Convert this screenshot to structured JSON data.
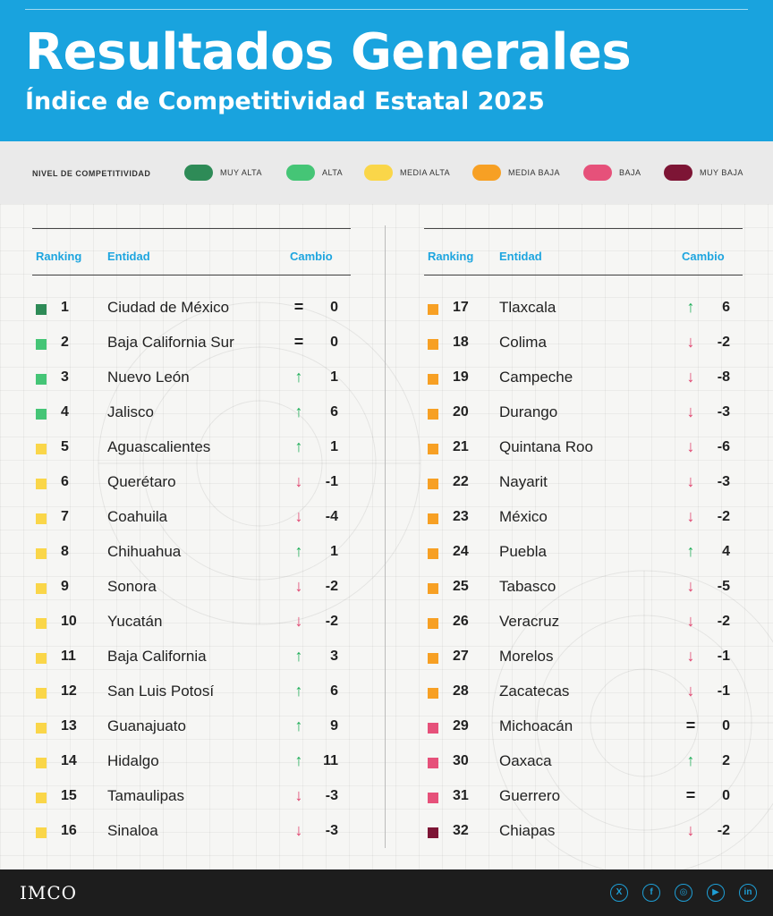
{
  "header": {
    "title": "Resultados Generales",
    "subtitle": "Índice de Competitividad Estatal 2025"
  },
  "legend": {
    "title": "NIVEL DE COMPETITIVIDAD",
    "items": [
      {
        "label": "MUY ALTA",
        "color": "#2e8b57"
      },
      {
        "label": "ALTA",
        "color": "#45c576"
      },
      {
        "label": "MEDIA ALTA",
        "color": "#fad649"
      },
      {
        "label": "MEDIA BAJA",
        "color": "#f7a024"
      },
      {
        "label": "BAJA",
        "color": "#e6517a"
      },
      {
        "label": "MUY BAJA",
        "color": "#7d1535"
      }
    ]
  },
  "columns": {
    "ranking": "Ranking",
    "entidad": "Entidad",
    "cambio": "Cambio"
  },
  "symbols": {
    "up": "↑",
    "down": "↓",
    "same": "="
  },
  "symbol_colors": {
    "up": "#1fae59",
    "down": "#e0406c",
    "same": "#222222"
  },
  "rows": [
    {
      "rank": "1",
      "entity": "Ciudad de México",
      "dir": "same",
      "change": "0",
      "level": 0
    },
    {
      "rank": "2",
      "entity": "Baja California Sur",
      "dir": "same",
      "change": "0",
      "level": 1
    },
    {
      "rank": "3",
      "entity": "Nuevo León",
      "dir": "up",
      "change": "1",
      "level": 1
    },
    {
      "rank": "4",
      "entity": "Jalisco",
      "dir": "up",
      "change": "6",
      "level": 1
    },
    {
      "rank": "5",
      "entity": "Aguascalientes",
      "dir": "up",
      "change": "1",
      "level": 2
    },
    {
      "rank": "6",
      "entity": "Querétaro",
      "dir": "down",
      "change": "-1",
      "level": 2
    },
    {
      "rank": "7",
      "entity": "Coahuila",
      "dir": "down",
      "change": "-4",
      "level": 2
    },
    {
      "rank": "8",
      "entity": "Chihuahua",
      "dir": "up",
      "change": "1",
      "level": 2
    },
    {
      "rank": "9",
      "entity": "Sonora",
      "dir": "down",
      "change": "-2",
      "level": 2
    },
    {
      "rank": "10",
      "entity": "Yucatán",
      "dir": "down",
      "change": "-2",
      "level": 2
    },
    {
      "rank": "11",
      "entity": "Baja California",
      "dir": "up",
      "change": "3",
      "level": 2
    },
    {
      "rank": "12",
      "entity": "San Luis Potosí",
      "dir": "up",
      "change": "6",
      "level": 2
    },
    {
      "rank": "13",
      "entity": "Guanajuato",
      "dir": "up",
      "change": "9",
      "level": 2
    },
    {
      "rank": "14",
      "entity": "Hidalgo",
      "dir": "up",
      "change": "11",
      "level": 2
    },
    {
      "rank": "15",
      "entity": "Tamaulipas",
      "dir": "down",
      "change": "-3",
      "level": 2
    },
    {
      "rank": "16",
      "entity": "Sinaloa",
      "dir": "down",
      "change": "-3",
      "level": 2
    },
    {
      "rank": "17",
      "entity": "Tlaxcala",
      "dir": "up",
      "change": "6",
      "level": 3
    },
    {
      "rank": "18",
      "entity": "Colima",
      "dir": "down",
      "change": "-2",
      "level": 3
    },
    {
      "rank": "19",
      "entity": "Campeche",
      "dir": "down",
      "change": "-8",
      "level": 3
    },
    {
      "rank": "20",
      "entity": "Durango",
      "dir": "down",
      "change": "-3",
      "level": 3
    },
    {
      "rank": "21",
      "entity": "Quintana Roo",
      "dir": "down",
      "change": "-6",
      "level": 3
    },
    {
      "rank": "22",
      "entity": "Nayarit",
      "dir": "down",
      "change": "-3",
      "level": 3
    },
    {
      "rank": "23",
      "entity": "México",
      "dir": "down",
      "change": "-2",
      "level": 3
    },
    {
      "rank": "24",
      "entity": "Puebla",
      "dir": "up",
      "change": "4",
      "level": 3
    },
    {
      "rank": "25",
      "entity": "Tabasco",
      "dir": "down",
      "change": "-5",
      "level": 3
    },
    {
      "rank": "26",
      "entity": "Veracruz",
      "dir": "down",
      "change": "-2",
      "level": 3
    },
    {
      "rank": "27",
      "entity": "Morelos",
      "dir": "down",
      "change": "-1",
      "level": 3
    },
    {
      "rank": "28",
      "entity": "Zacatecas",
      "dir": "down",
      "change": "-1",
      "level": 3
    },
    {
      "rank": "29",
      "entity": "Michoacán",
      "dir": "same",
      "change": "0",
      "level": 4
    },
    {
      "rank": "30",
      "entity": "Oaxaca",
      "dir": "up",
      "change": "2",
      "level": 4
    },
    {
      "rank": "31",
      "entity": "Guerrero",
      "dir": "same",
      "change": "0",
      "level": 4
    },
    {
      "rank": "32",
      "entity": "Chiapas",
      "dir": "down",
      "change": "-2",
      "level": 5
    }
  ],
  "footer": {
    "logo": "IMCO",
    "social": [
      {
        "icon": "x-icon",
        "glyph": "X"
      },
      {
        "icon": "facebook-icon",
        "glyph": "f"
      },
      {
        "icon": "instagram-icon",
        "glyph": "◎"
      },
      {
        "icon": "youtube-icon",
        "glyph": "▶"
      },
      {
        "icon": "linkedin-icon",
        "glyph": "in"
      }
    ]
  }
}
